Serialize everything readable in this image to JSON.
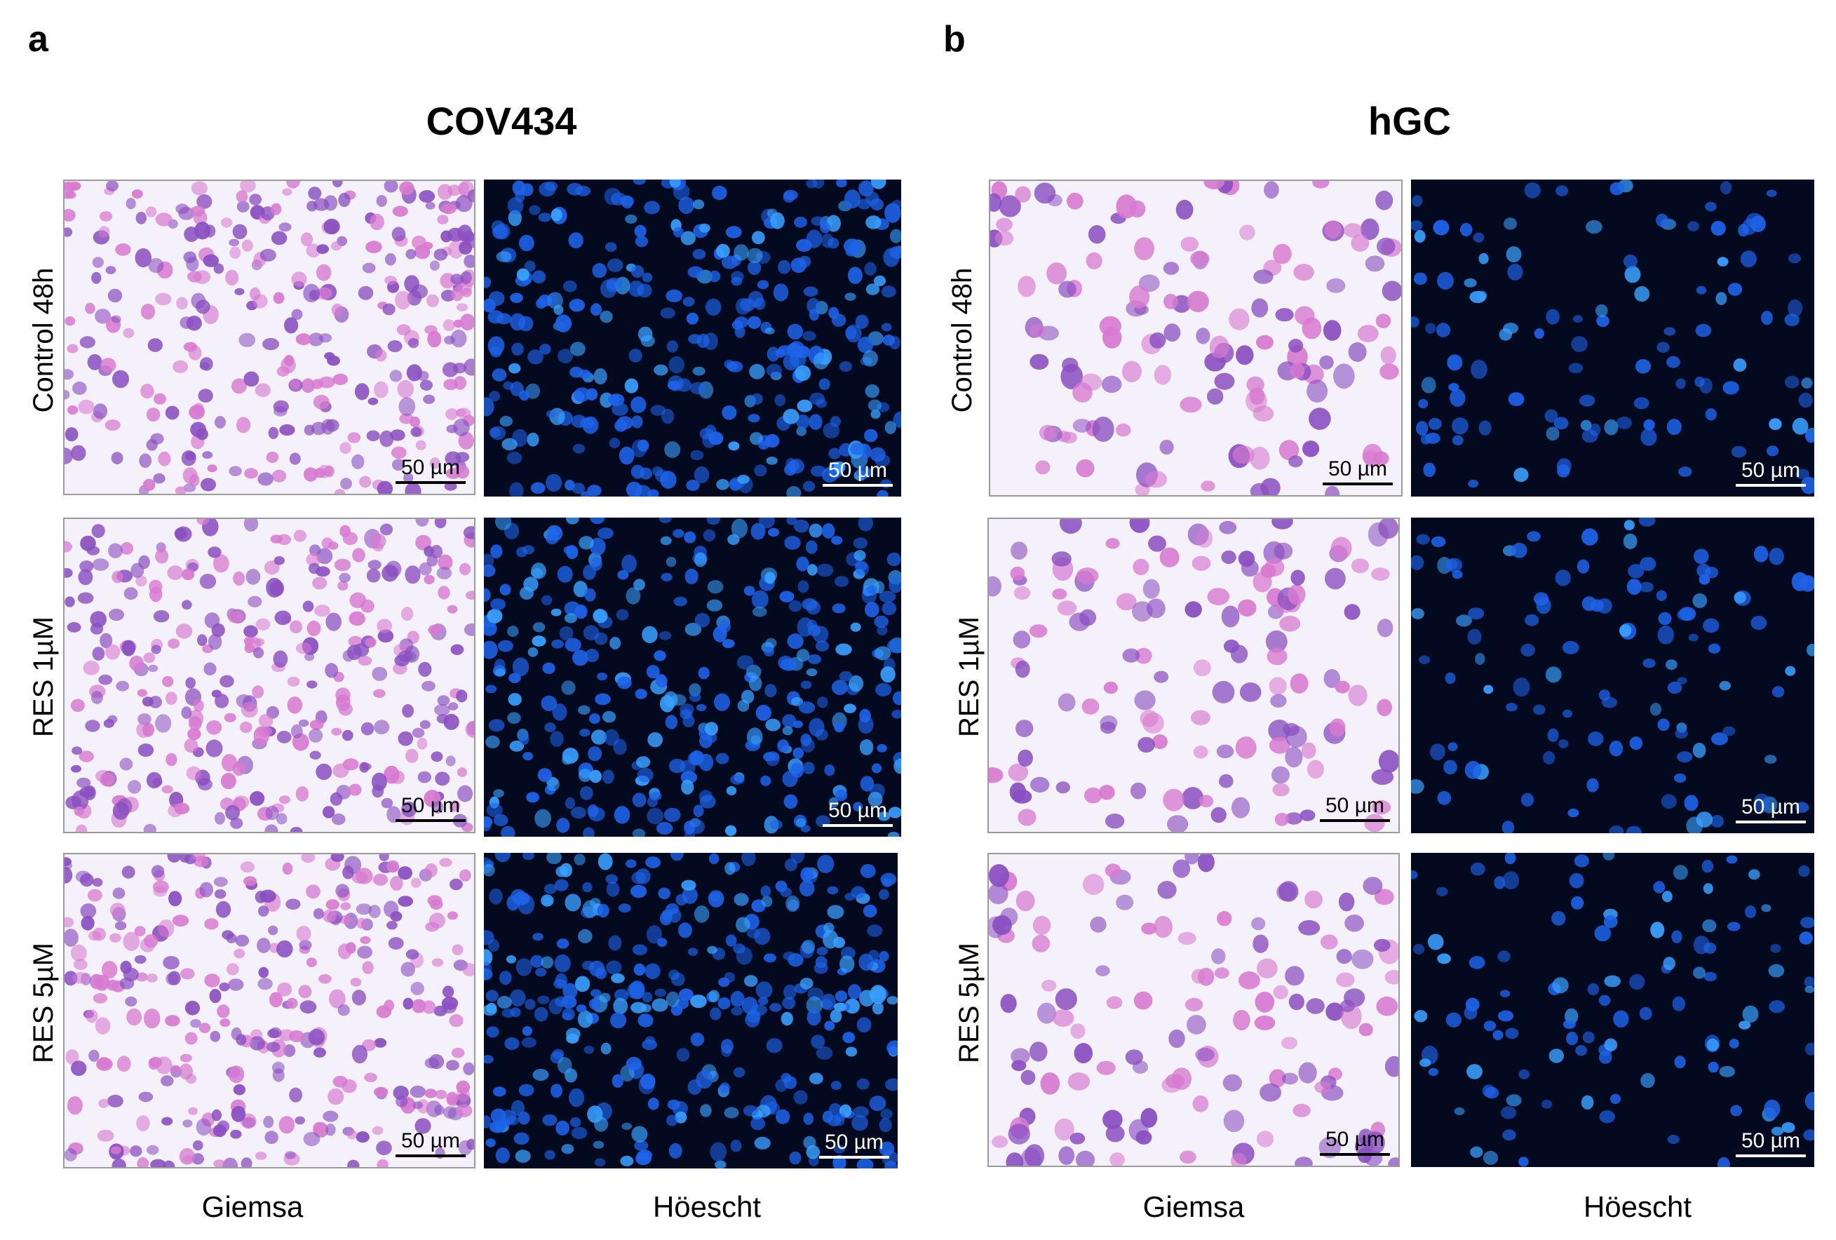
{
  "panels": [
    {
      "letter": "a",
      "title": "COV434"
    },
    {
      "letter": "b",
      "title": "hGC"
    }
  ],
  "row_labels": [
    "Control 48h",
    "RES 1µM",
    "RES 5µM"
  ],
  "column_labels": [
    "Giemsa",
    "Höescht",
    "Giemsa",
    "Höescht"
  ],
  "scale_bar_label": "50 µm",
  "colors": {
    "giemsa_bg": "#f5f1fa",
    "giemsa_cell": "#8a4fc0",
    "giemsa_cell_pink": "#d77ad0",
    "hoechst_bg": "#03091f",
    "hoechst_cell": "#1e63e8",
    "hoechst_cell_bright": "#3aa0ff"
  }
}
